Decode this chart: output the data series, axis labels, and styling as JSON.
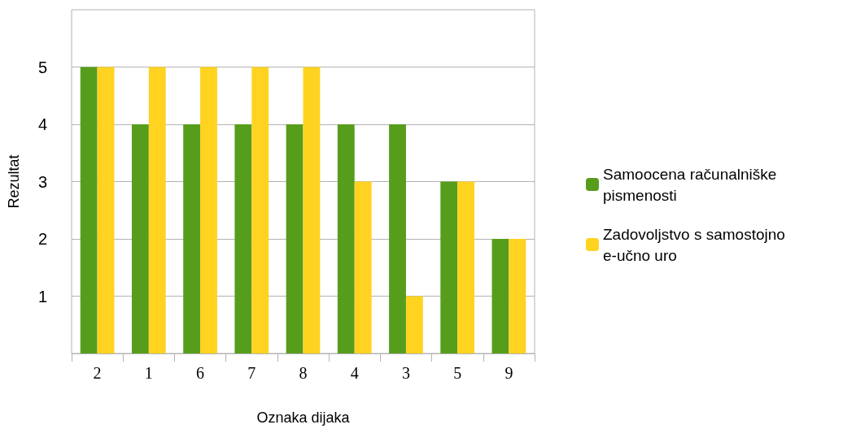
{
  "chart_data": {
    "type": "bar",
    "xlabel": "Oznaka dijaka",
    "ylabel": "Rezultat",
    "categories": [
      "2",
      "1",
      "6",
      "7",
      "8",
      "4",
      "3",
      "5",
      "9"
    ],
    "series": [
      {
        "name": "Samoocena računalniške pismenosti",
        "color": "#579d1c",
        "values": [
          5,
          4,
          4,
          4,
          4,
          4,
          4,
          3,
          2
        ]
      },
      {
        "name": "Zadovoljstvo s samostojno e-učno uro",
        "color": "#ffd320",
        "values": [
          5,
          5,
          5,
          5,
          5,
          3,
          1,
          3,
          2
        ]
      }
    ],
    "ylim": [
      0,
      6
    ],
    "yticks": [
      1,
      2,
      3,
      4,
      5
    ],
    "grid": "y",
    "legend": "right"
  }
}
